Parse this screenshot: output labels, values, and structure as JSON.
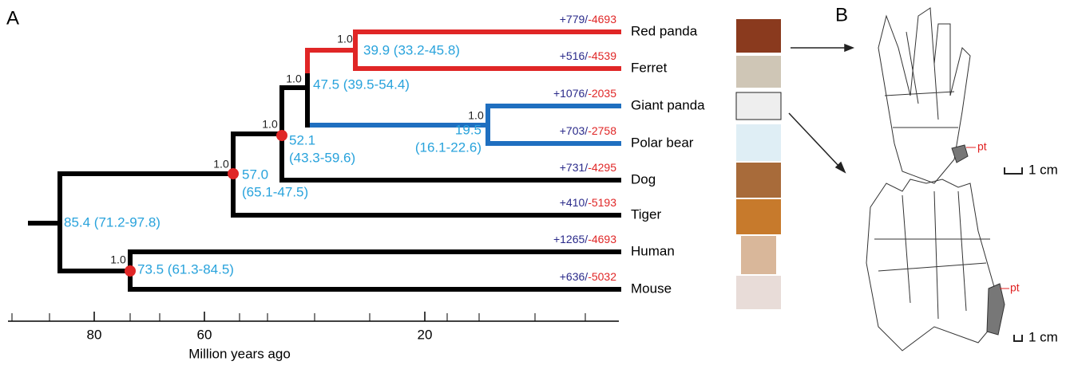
{
  "panel_labels": [
    "A",
    "B"
  ],
  "tree": {
    "separator": "/",
    "leaves": [
      {
        "name": "Red panda",
        "gain": "+779",
        "loss": "-4693"
      },
      {
        "name": "Ferret",
        "gain": "+516",
        "loss": "-4539"
      },
      {
        "name": "Giant panda",
        "gain": "+1076",
        "loss": "-2035"
      },
      {
        "name": "Polar bear",
        "gain": "+703",
        "loss": "-2758"
      },
      {
        "name": "Dog",
        "gain": "+731",
        "loss": "-4295"
      },
      {
        "name": "Tiger",
        "gain": "+410",
        "loss": "-5193"
      },
      {
        "name": "Human",
        "gain": "+1265",
        "loss": "-4693"
      },
      {
        "name": "Mouse",
        "gain": "+636",
        "loss": "-5032"
      }
    ],
    "nodes": [
      {
        "support": "1.0",
        "age": [
          "39.9 (33.2-45.8)"
        ]
      },
      {
        "support": "1.0",
        "age": [
          "19.5",
          "(16.1-22.6)"
        ]
      },
      {
        "support": "1.0",
        "age": [
          "47.5 (39.5-54.4)"
        ]
      },
      {
        "support": "1.0",
        "age": [
          "52.1",
          "(43.3-59.6)"
        ]
      },
      {
        "support": "1.0",
        "age": [
          "57.0",
          "(65.1-47.5)"
        ]
      },
      {
        "support": "1.0",
        "age": [
          "73.5 (61.3-84.5)"
        ]
      },
      {
        "age": [
          "85.4 (71.2-97.8)"
        ]
      }
    ],
    "axis": {
      "label": "Million years ago",
      "ticks": [
        80,
        60,
        20
      ]
    }
  },
  "panel_b": {
    "markers": [
      "pt",
      "pt"
    ],
    "scale_bars": [
      "1 cm",
      "1 cm"
    ]
  }
}
